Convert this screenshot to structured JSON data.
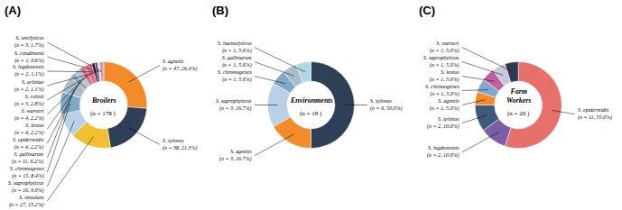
{
  "chart_data": [
    {
      "type": "pie",
      "title": "Broilers",
      "subtitle": "(n = 178 )",
      "annotations": [
        "(A)"
      ],
      "categories": [
        "S. agnetis\n(n = 47, 26.4%)",
        "S. xylosus\n(n = 38, 21.3%)",
        "S. simulans\n(n = 27, 15.2%)",
        "S. saprophyticus\n(n = 16, 9.0%)",
        "S. chromogenes\n(n = 15, 8.4%)",
        "S. gallinarum\n(n = 11, 6.2%)",
        "S. epidermidis\n(n = 4, 2.2%)",
        "S. lentus\n(n = 4, 2.2%)",
        "S. warneri\n(n = 4, 2.2%)",
        "S. cohnii\n(n = 5, 2.8%)",
        "S. arlettae\n(n = 2, 1.1%)",
        "S. lugdunensis\n(n = 2, 1.1%)",
        "S. condimenti\n(n = 1, 0.6%)",
        "S. ureilyticus\n(n = 3, 1.7%)"
      ],
      "values": [
        47,
        38,
        27,
        16,
        15,
        11,
        4,
        4,
        4,
        5,
        2,
        2,
        1,
        3
      ],
      "colors": [
        "#F28C28",
        "#2E4057",
        "#F0C030",
        "#B8D0E8",
        "#7FA8C9",
        "#A8BECC",
        "#90AABB",
        "#B0C4CC",
        "#D87093",
        "#E8708A",
        "#1A1A2E",
        "#6B4F8E",
        "#E8E0C8",
        "#C8A0B8"
      ]
    },
    {
      "type": "pie",
      "title": "Environments",
      "subtitle": "(n = 18 )",
      "annotations": [
        "(B)"
      ],
      "categories": [
        "S. xylosus\n(n = 9, 50.0%)",
        "S. agnetis\n(n = 3, 16.7%)",
        "S. saprophyticus\n(n = 3, 16.7%)",
        "S. chromogenes\n(n = 1, 5.6%)",
        "S. gallinarum\n(n = 1, 5.6%)",
        "S. haemolyticus\n(n = 1, 5.6%)"
      ],
      "values": [
        9,
        3,
        3,
        1,
        1,
        1
      ],
      "colors": [
        "#2E4057",
        "#F28C28",
        "#B8D0E8",
        "#7FA8C9",
        "#A8BECC",
        "#ADD8E6"
      ]
    },
    {
      "type": "pie",
      "title": "Farm\nWorkers",
      "subtitle": "(n = 20 )",
      "annotations": [
        "(C)"
      ],
      "categories": [
        "S. epidermidis\n(n = 11, 55.0%)",
        "S. lugdunensis\n(n = 2, 10.0%)",
        "S. xylosus\n(n = 2, 10.0%)",
        "S. agnetis\n(n = 1, 5.0%)",
        "S. chromogenes\n(n = 1, 5.0%)",
        "S. lentus\n(n = 1, 5.0%)",
        "S. saprophyticus\n(n = 1, 5.0%)",
        "S. warneri\n(n = 1, 5.0%)"
      ],
      "values": [
        11,
        2,
        2,
        1,
        1,
        1,
        1,
        1
      ],
      "colors": [
        "#E8706A",
        "#7B5EA7",
        "#3D5A7A",
        "#F28C28",
        "#7FA8C9",
        "#C060A0",
        "#C8C8DC",
        "#2E3A50"
      ]
    }
  ]
}
